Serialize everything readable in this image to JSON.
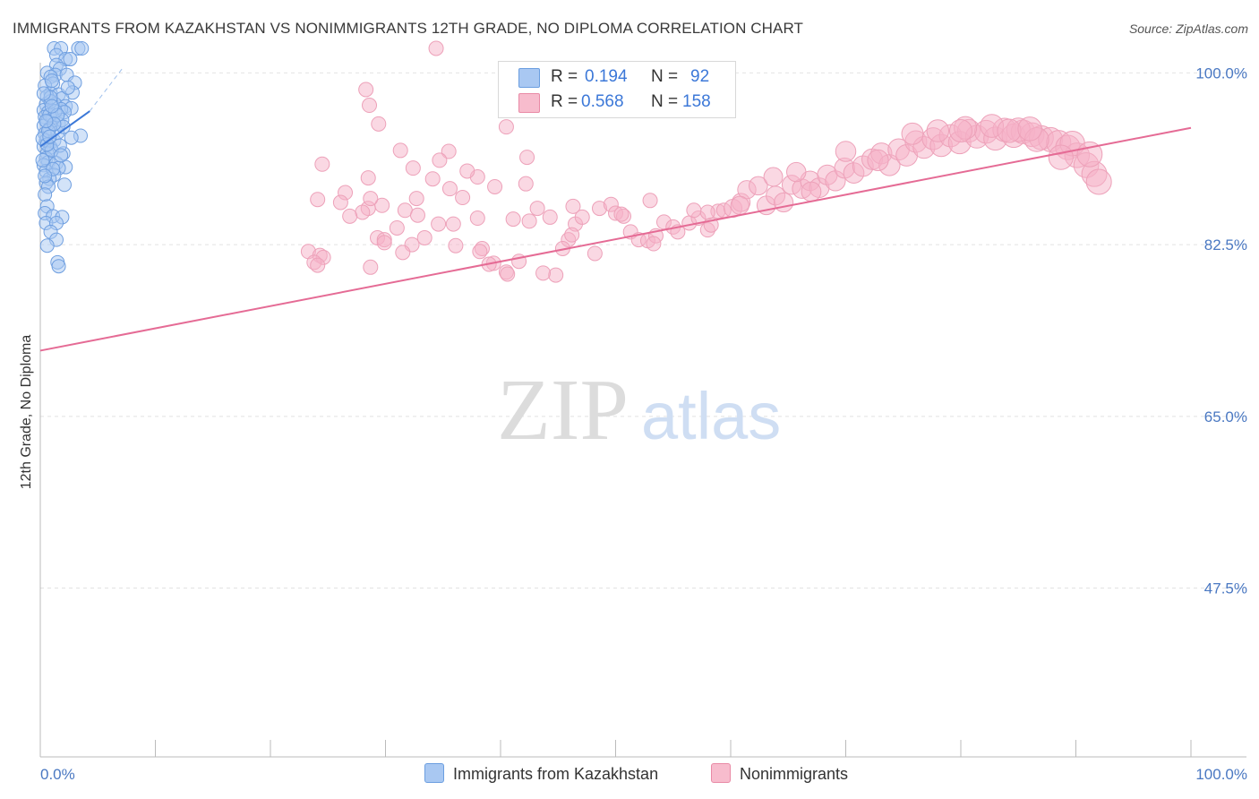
{
  "title": "IMMIGRANTS FROM KAZAKHSTAN VS NONIMMIGRANTS 12TH GRADE, NO DIPLOMA CORRELATION CHART",
  "source": "Source: ZipAtlas.com",
  "watermark": {
    "zip": "ZIP",
    "atlas": "atlas"
  },
  "legend": {
    "r_label": "R =",
    "n_label": "N =",
    "rows": [
      {
        "r": "0.194",
        "n": "92",
        "color": "#a9c8f2",
        "border": "#6b9ee0"
      },
      {
        "r": "0.568",
        "n": "158",
        "color": "#f7bccd",
        "border": "#e98aa6"
      }
    ]
  },
  "bottom_legend": [
    {
      "label": "Immigrants from Kazakhstan",
      "color": "#a9c8f2",
      "border": "#6b9ee0"
    },
    {
      "label": "Nonimmigrants",
      "color": "#f7bccd",
      "border": "#e98aa6"
    }
  ],
  "chart_data": {
    "type": "scatter",
    "title": "IMMIGRANTS FROM KAZAKHSTAN VS NONIMMIGRANTS 12TH GRADE, NO DIPLOMA CORRELATION CHART",
    "xlabel": "",
    "ylabel": "12th Grade, No Diploma",
    "xlim": [
      0,
      100
    ],
    "ylim": [
      30.3,
      100.4
    ],
    "x_tick_labels": [
      "0.0%",
      "100.0%"
    ],
    "y_tick_labels": [
      "100.0%",
      "82.5%",
      "65.0%",
      "47.5%"
    ],
    "y_ticks": [
      100.0,
      82.5,
      65.0,
      47.5
    ],
    "grid": "horizontal dashed",
    "legend_position": "top-center",
    "colors": {
      "blue": "#4a86e0",
      "pink": "#e8729a"
    },
    "series": [
      {
        "name": "Immigrants from Kazakhstan",
        "r": 0.194,
        "n": 92,
        "trend": {
          "x": [
            0,
            4.3
          ],
          "y": [
            92.5,
            96.1
          ]
        },
        "points": [
          [
            1.2,
            102.5
          ],
          [
            1.8,
            102.5
          ],
          [
            3.3,
            102.5
          ],
          [
            3.6,
            102.5
          ],
          [
            1.4,
            101.8
          ],
          [
            2.2,
            101.4
          ],
          [
            2.6,
            101.4
          ],
          [
            1.4,
            100.8
          ],
          [
            0.6,
            100.0
          ],
          [
            1.7,
            100.4
          ],
          [
            1.3,
            99.8
          ],
          [
            0.9,
            99.6
          ],
          [
            2.3,
            99.8
          ],
          [
            1.1,
            98.9
          ],
          [
            3.0,
            99.0
          ],
          [
            0.4,
            98.7
          ],
          [
            0.9,
            97.9
          ],
          [
            1.6,
            97.8
          ],
          [
            2.8,
            98.0
          ],
          [
            1.9,
            97.4
          ],
          [
            0.6,
            97.6
          ],
          [
            0.5,
            96.8
          ],
          [
            1.3,
            96.8
          ],
          [
            2.2,
            96.6
          ],
          [
            2.7,
            96.4
          ],
          [
            1.8,
            96.3
          ],
          [
            0.3,
            96.2
          ],
          [
            0.7,
            96.0
          ],
          [
            0.4,
            95.5
          ],
          [
            1.1,
            95.4
          ],
          [
            0.6,
            95.0
          ],
          [
            1.6,
            94.8
          ],
          [
            0.3,
            94.6
          ],
          [
            0.8,
            94.3
          ],
          [
            0.4,
            93.8
          ],
          [
            3.5,
            93.6
          ],
          [
            2.7,
            93.4
          ],
          [
            0.5,
            93.1
          ],
          [
            1.2,
            93.1
          ],
          [
            0.3,
            92.5
          ],
          [
            0.9,
            92.4
          ],
          [
            0.6,
            91.8
          ],
          [
            2.0,
            91.8
          ],
          [
            0.5,
            91.3
          ],
          [
            0.7,
            90.9
          ],
          [
            1.4,
            90.8
          ],
          [
            0.3,
            90.6
          ],
          [
            2.2,
            90.4
          ],
          [
            1.6,
            90.3
          ],
          [
            0.5,
            90.0
          ],
          [
            1.2,
            89.6
          ],
          [
            0.8,
            89.2
          ],
          [
            0.5,
            88.8
          ],
          [
            2.1,
            88.6
          ],
          [
            0.7,
            88.4
          ],
          [
            0.4,
            87.6
          ],
          [
            0.6,
            86.4
          ],
          [
            0.4,
            85.7
          ],
          [
            1.1,
            85.4
          ],
          [
            1.9,
            85.3
          ],
          [
            0.5,
            84.7
          ],
          [
            1.4,
            84.7
          ],
          [
            0.9,
            83.8
          ],
          [
            1.4,
            83.0
          ],
          [
            0.6,
            82.4
          ],
          [
            1.5,
            80.7
          ],
          [
            1.6,
            80.3
          ],
          [
            1.0,
            92.1
          ],
          [
            1.5,
            93.9
          ],
          [
            0.8,
            95.7
          ],
          [
            2.1,
            96.0
          ],
          [
            1.9,
            95.2
          ],
          [
            0.9,
            97.1
          ],
          [
            2.4,
            98.5
          ],
          [
            1.0,
            99.2
          ],
          [
            0.2,
            93.3
          ],
          [
            0.6,
            92.7
          ],
          [
            1.3,
            96.1
          ],
          [
            0.7,
            94.1
          ],
          [
            1.7,
            92.6
          ],
          [
            1.1,
            90.2
          ],
          [
            0.4,
            89.5
          ],
          [
            0.9,
            97.5
          ],
          [
            1.5,
            95.7
          ],
          [
            0.3,
            97.9
          ],
          [
            2.0,
            94.5
          ],
          [
            1.2,
            94.8
          ],
          [
            0.8,
            93.5
          ],
          [
            0.5,
            95.1
          ],
          [
            1.8,
            91.6
          ],
          [
            0.2,
            91.1
          ],
          [
            1.0,
            96.6
          ]
        ]
      },
      {
        "name": "Nonimmigrants",
        "r": 0.568,
        "n": 158,
        "trend": {
          "x": [
            0,
            100
          ],
          "y": [
            71.7,
            94.4
          ]
        },
        "points": [
          [
            34.4,
            102.5
          ],
          [
            28.3,
            98.3
          ],
          [
            29.4,
            94.8
          ],
          [
            28.6,
            96.7
          ],
          [
            40.5,
            94.5
          ],
          [
            31.3,
            92.1
          ],
          [
            35.5,
            92.0
          ],
          [
            42.3,
            91.4
          ],
          [
            34.7,
            91.1
          ],
          [
            24.5,
            90.7
          ],
          [
            38.0,
            89.4
          ],
          [
            28.5,
            89.3
          ],
          [
            34.1,
            89.2
          ],
          [
            37.1,
            90.0
          ],
          [
            42.2,
            88.7
          ],
          [
            39.5,
            88.4
          ],
          [
            35.6,
            88.2
          ],
          [
            26.5,
            87.8
          ],
          [
            36.7,
            87.3
          ],
          [
            32.7,
            87.2
          ],
          [
            29.7,
            86.5
          ],
          [
            28.5,
            86.2
          ],
          [
            31.7,
            86.0
          ],
          [
            32.8,
            85.5
          ],
          [
            38.0,
            85.2
          ],
          [
            35.9,
            84.6
          ],
          [
            34.6,
            84.6
          ],
          [
            31.0,
            84.2
          ],
          [
            33.4,
            83.2
          ],
          [
            29.3,
            83.2
          ],
          [
            29.9,
            83.0
          ],
          [
            29.9,
            82.7
          ],
          [
            32.3,
            82.5
          ],
          [
            31.5,
            81.7
          ],
          [
            36.1,
            82.4
          ],
          [
            38.4,
            82.1
          ],
          [
            23.3,
            81.8
          ],
          [
            24.3,
            81.4
          ],
          [
            24.6,
            81.2
          ],
          [
            23.8,
            80.7
          ],
          [
            24.1,
            80.4
          ],
          [
            28.7,
            80.2
          ],
          [
            39.4,
            80.6
          ],
          [
            40.5,
            79.7
          ],
          [
            40.6,
            79.5
          ],
          [
            41.6,
            80.8
          ],
          [
            44.8,
            79.4
          ],
          [
            45.9,
            83.0
          ],
          [
            46.5,
            84.6
          ],
          [
            47.1,
            85.3
          ],
          [
            48.6,
            86.2
          ],
          [
            49.6,
            86.6
          ],
          [
            50.0,
            85.7
          ],
          [
            50.7,
            85.4
          ],
          [
            51.3,
            83.8
          ],
          [
            52.0,
            83.0
          ],
          [
            52.8,
            82.9
          ],
          [
            53.5,
            83.4
          ],
          [
            54.2,
            84.8
          ],
          [
            55.0,
            84.3
          ],
          [
            55.4,
            83.8
          ],
          [
            56.4,
            84.7
          ],
          [
            57.2,
            85.2
          ],
          [
            58.0,
            84.0
          ],
          [
            58.3,
            84.5
          ],
          [
            58.9,
            85.9
          ],
          [
            59.4,
            86.0
          ],
          [
            60.2,
            86.2
          ],
          [
            60.9,
            86.8
          ],
          [
            61.4,
            88.1
          ],
          [
            62.4,
            88.5
          ],
          [
            63.1,
            86.5
          ],
          [
            63.9,
            87.5
          ],
          [
            64.6,
            86.8
          ],
          [
            65.3,
            88.6
          ],
          [
            66.2,
            88.2
          ],
          [
            66.9,
            89.0
          ],
          [
            67.7,
            88.3
          ],
          [
            68.4,
            89.6
          ],
          [
            69.1,
            89.0
          ],
          [
            69.9,
            90.3
          ],
          [
            70.7,
            89.8
          ],
          [
            71.5,
            90.5
          ],
          [
            72.3,
            91.2
          ],
          [
            73.1,
            91.8
          ],
          [
            73.8,
            90.6
          ],
          [
            74.6,
            92.2
          ],
          [
            75.3,
            91.6
          ],
          [
            76.1,
            93.0
          ],
          [
            76.8,
            92.4
          ],
          [
            77.6,
            93.3
          ],
          [
            78.3,
            92.6
          ],
          [
            79.1,
            93.6
          ],
          [
            79.9,
            92.9
          ],
          [
            80.7,
            94.1
          ],
          [
            81.4,
            93.5
          ],
          [
            82.2,
            94.0
          ],
          [
            83.0,
            93.3
          ],
          [
            83.8,
            94.2
          ],
          [
            84.6,
            93.6
          ],
          [
            85.4,
            94.0
          ],
          [
            86.2,
            93.7
          ],
          [
            87.0,
            93.4
          ],
          [
            87.8,
            93.2
          ],
          [
            88.5,
            92.9
          ],
          [
            89.3,
            92.4
          ],
          [
            90.1,
            91.6
          ],
          [
            90.9,
            90.6
          ],
          [
            91.6,
            89.7
          ],
          [
            92.0,
            88.9
          ],
          [
            60.8,
            86.5
          ],
          [
            58.0,
            85.8
          ],
          [
            50.5,
            85.6
          ],
          [
            53.0,
            87.0
          ],
          [
            46.2,
            83.5
          ],
          [
            45.4,
            82.1
          ],
          [
            48.2,
            81.6
          ],
          [
            44.3,
            85.3
          ],
          [
            41.1,
            85.1
          ],
          [
            43.2,
            86.2
          ],
          [
            42.5,
            84.9
          ],
          [
            46.3,
            86.4
          ],
          [
            32.4,
            90.3
          ],
          [
            28.7,
            87.2
          ],
          [
            26.1,
            86.8
          ],
          [
            28.0,
            85.8
          ],
          [
            26.9,
            85.4
          ],
          [
            24.1,
            87.1
          ],
          [
            38.2,
            81.8
          ],
          [
            39.0,
            80.5
          ],
          [
            43.7,
            79.6
          ],
          [
            53.3,
            82.6
          ],
          [
            56.8,
            86.0
          ],
          [
            63.7,
            89.4
          ],
          [
            65.7,
            89.9
          ],
          [
            67.0,
            87.9
          ],
          [
            70.0,
            92.0
          ],
          [
            72.8,
            91.1
          ],
          [
            75.8,
            93.8
          ],
          [
            78.0,
            94.1
          ],
          [
            80.4,
            94.4
          ],
          [
            82.7,
            94.6
          ],
          [
            85.0,
            94.2
          ],
          [
            86.6,
            93.2
          ],
          [
            89.7,
            92.8
          ],
          [
            91.2,
            91.7
          ],
          [
            88.7,
            91.4
          ],
          [
            80.0,
            94.1
          ],
          [
            84.2,
            94.1
          ],
          [
            86.0,
            94.3
          ]
        ]
      }
    ]
  }
}
